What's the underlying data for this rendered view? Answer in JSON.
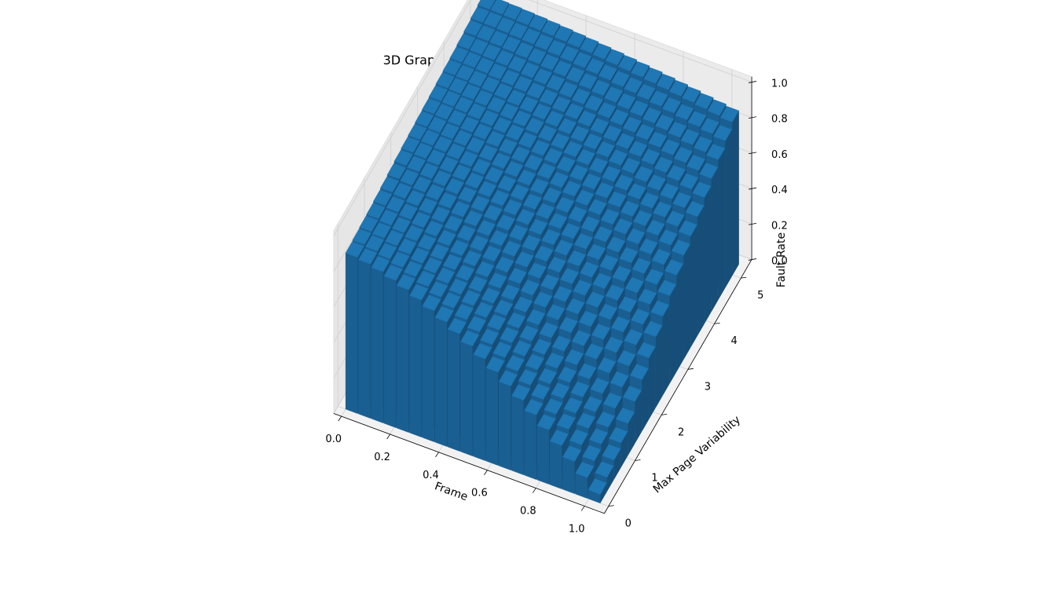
{
  "chart_data": {
    "type": "bar3d",
    "title": "3D Graph for Fault Rate by Page List Size = 1000",
    "xlabel": "Frame",
    "ylabel": "Max Page Variability",
    "zlabel": "Fault Rate",
    "x_ticks": [
      "0.0",
      "0.2",
      "0.4",
      "0.6",
      "0.8",
      "1.0"
    ],
    "y_ticks": [
      "0",
      "1",
      "2",
      "3",
      "4",
      "5"
    ],
    "z_ticks": [
      "0.0",
      "0.2",
      "0.4",
      "0.6",
      "0.8",
      "1.0"
    ],
    "xlim": [
      0,
      1.05
    ],
    "ylim": [
      0,
      5.25
    ],
    "zlim": [
      0,
      1.0
    ],
    "grid": true,
    "bar_color": "#1f77b4",
    "x_bins": 20,
    "y_bins": 20,
    "surface_description_values": {
      "fault_rate_at_frame_0": [
        0.88,
        0.9,
        0.93,
        0.95,
        0.97,
        1.0
      ],
      "fault_rate_at_frame_1": [
        0.0,
        0.12,
        0.35,
        0.55,
        0.72,
        0.88
      ]
    }
  }
}
